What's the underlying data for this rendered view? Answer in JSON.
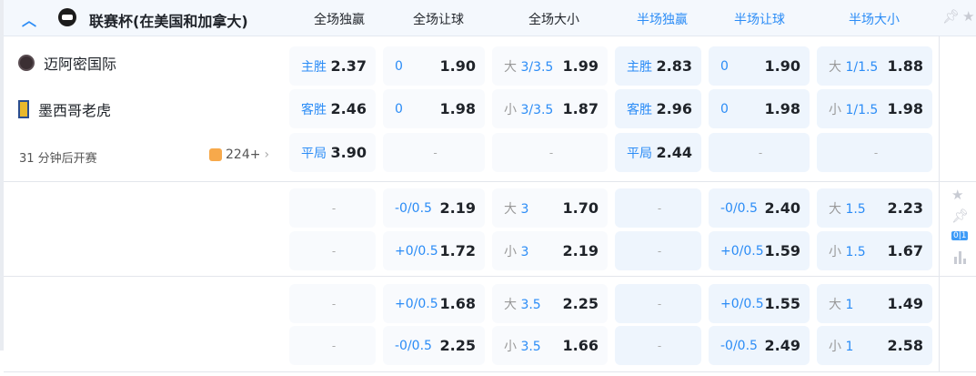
{
  "header": {
    "league": "联赛杯(在美国和加拿大)",
    "columns": [
      {
        "label": "全场独赢",
        "color": "#1f2329"
      },
      {
        "label": "全场让球",
        "color": "#1f2329"
      },
      {
        "label": "全场大小",
        "color": "#1f2329"
      },
      {
        "label": "半场独赢",
        "color": "#2b8cf6"
      },
      {
        "label": "半场让球",
        "color": "#2b8cf6"
      },
      {
        "label": "半场大小",
        "color": "#2b8cf6"
      }
    ]
  },
  "match": {
    "home": "迈阿密国际",
    "away": "墨西哥老虎",
    "kickoff": "31 分钟后开赛",
    "more_count": "224+"
  },
  "sections": [
    [
      [
        {
          "l": "主胜",
          "o": "2.37"
        },
        {
          "l": "0",
          "o": "1.90"
        },
        {
          "g": "大",
          "l": "3/3.5",
          "o": "1.99"
        },
        {
          "l": "主胜",
          "o": "2.83"
        },
        {
          "l": "0",
          "o": "1.90"
        },
        {
          "g": "大",
          "l": "1/1.5",
          "o": "1.88"
        }
      ],
      [
        {
          "l": "客胜",
          "o": "2.46"
        },
        {
          "l": "0",
          "o": "1.98"
        },
        {
          "g": "小",
          "l": "3/3.5",
          "o": "1.87"
        },
        {
          "l": "客胜",
          "o": "2.96"
        },
        {
          "l": "0",
          "o": "1.98"
        },
        {
          "g": "小",
          "l": "1/1.5",
          "o": "1.98"
        }
      ],
      [
        {
          "l": "平局",
          "o": "3.90"
        },
        {
          "d": "-"
        },
        {
          "d": "-"
        },
        {
          "l": "平局",
          "o": "2.44"
        },
        {
          "d": "-"
        },
        {
          "d": "-"
        }
      ]
    ],
    [
      [
        {
          "d": "-"
        },
        {
          "l": "-0/0.5",
          "o": "2.19"
        },
        {
          "g": "大",
          "l": "3",
          "o": "1.70"
        },
        {
          "d": "-"
        },
        {
          "l": "-0/0.5",
          "o": "2.40"
        },
        {
          "g": "大",
          "l": "1.5",
          "o": "2.23"
        }
      ],
      [
        {
          "d": "-"
        },
        {
          "l": "+0/0.5",
          "o": "1.72"
        },
        {
          "g": "小",
          "l": "3",
          "o": "2.19"
        },
        {
          "d": "-"
        },
        {
          "l": "+0/0.5",
          "o": "1.59"
        },
        {
          "g": "小",
          "l": "1.5",
          "o": "1.67"
        }
      ]
    ],
    [
      [
        {
          "d": "-"
        },
        {
          "l": "+0/0.5",
          "o": "1.68"
        },
        {
          "g": "大",
          "l": "3.5",
          "o": "2.25"
        },
        {
          "d": "-"
        },
        {
          "l": "+0/0.5",
          "o": "1.55"
        },
        {
          "g": "大",
          "l": "1",
          "o": "1.49"
        }
      ],
      [
        {
          "d": "-"
        },
        {
          "l": "-0/0.5",
          "o": "2.25"
        },
        {
          "g": "小",
          "l": "3.5",
          "o": "1.66"
        },
        {
          "d": "-"
        },
        {
          "l": "-0/0.5",
          "o": "2.49"
        },
        {
          "g": "小",
          "l": "1",
          "o": "2.58"
        }
      ]
    ]
  ],
  "side": {
    "score_badge": "0|1",
    "icons": [
      "star-icon",
      "pin-icon",
      "score-icon",
      "stats-icon"
    ]
  }
}
